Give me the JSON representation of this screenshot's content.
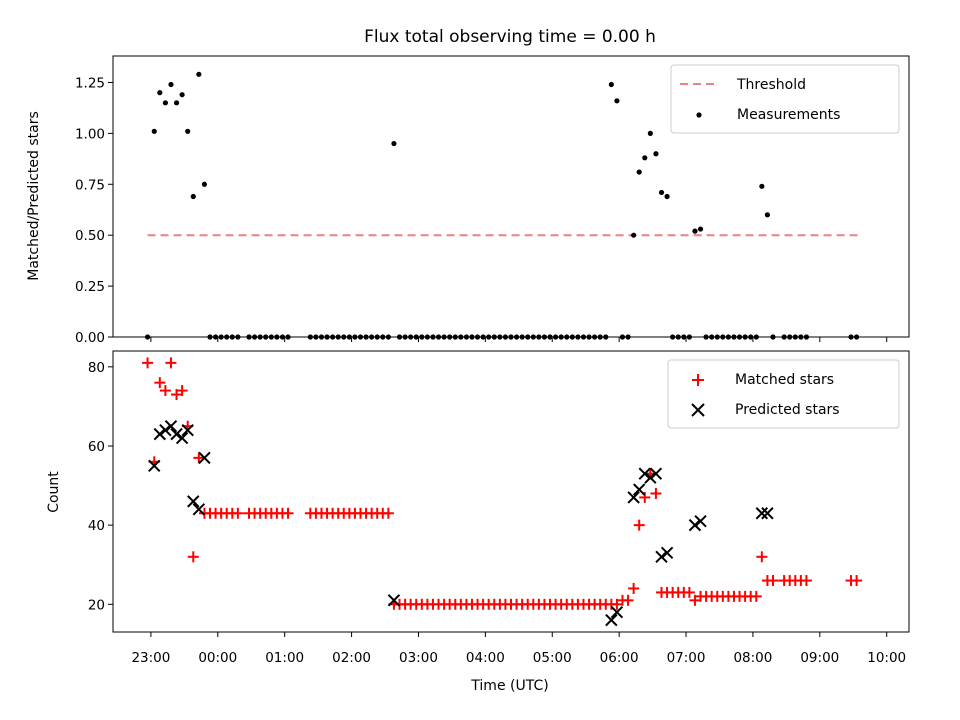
{
  "chart_data": [
    {
      "type": "scatter",
      "title": "Flux total observing time = 0.00 h",
      "xlabel": "",
      "ylabel": "Matched/Predicted stars",
      "xlim": [
        "22:26",
        "10:20"
      ],
      "ylim": [
        0,
        1.38
      ],
      "yticks": [
        "0.00",
        "0.25",
        "0.50",
        "0.75",
        "1.00",
        "1.25"
      ],
      "xticks": [
        "23:00",
        "00:00",
        "01:00",
        "02:00",
        "03:00",
        "04:00",
        "05:00",
        "06:00",
        "07:00",
        "08:00",
        "09:00",
        "10:00"
      ],
      "legend_position": "upper-right",
      "threshold": {
        "name": "Threshold",
        "value": 0.5,
        "x_start": "22:57",
        "x_end": "09:35",
        "color": "#f08080",
        "style": "dashed"
      },
      "series": [
        {
          "name": "Measurements",
          "color": "#000000",
          "marker": "dot",
          "points": [
            [
              "22:57",
              0.0
            ],
            [
              "23:03",
              1.01
            ],
            [
              "23:08",
              1.2
            ],
            [
              "23:13",
              1.15
            ],
            [
              "23:18",
              1.24
            ],
            [
              "23:23",
              1.15
            ],
            [
              "23:28",
              1.19
            ],
            [
              "23:33",
              1.01
            ],
            [
              "23:38",
              0.69
            ],
            [
              "23:43",
              1.29
            ],
            [
              "23:48",
              0.75
            ],
            [
              "23:53",
              0.0
            ],
            [
              "23:58",
              0.0
            ],
            [
              "00:03",
              0.0
            ],
            [
              "00:08",
              0.0
            ],
            [
              "00:13",
              0.0
            ],
            [
              "00:18",
              0.0
            ],
            [
              "00:28",
              0.0
            ],
            [
              "00:33",
              0.0
            ],
            [
              "00:38",
              0.0
            ],
            [
              "00:43",
              0.0
            ],
            [
              "00:48",
              0.0
            ],
            [
              "00:53",
              0.0
            ],
            [
              "00:58",
              0.0
            ],
            [
              "01:03",
              0.0
            ],
            [
              "01:23",
              0.0
            ],
            [
              "01:28",
              0.0
            ],
            [
              "01:33",
              0.0
            ],
            [
              "01:38",
              0.0
            ],
            [
              "01:43",
              0.0
            ],
            [
              "01:48",
              0.0
            ],
            [
              "01:53",
              0.0
            ],
            [
              "01:58",
              0.0
            ],
            [
              "02:03",
              0.0
            ],
            [
              "02:08",
              0.0
            ],
            [
              "02:13",
              0.0
            ],
            [
              "02:18",
              0.0
            ],
            [
              "02:23",
              0.0
            ],
            [
              "02:28",
              0.0
            ],
            [
              "02:33",
              0.0
            ],
            [
              "02:38",
              0.95
            ],
            [
              "02:43",
              0.0
            ],
            [
              "02:48",
              0.0
            ],
            [
              "02:53",
              0.0
            ],
            [
              "02:58",
              0.0
            ],
            [
              "03:03",
              0.0
            ],
            [
              "03:08",
              0.0
            ],
            [
              "03:13",
              0.0
            ],
            [
              "03:18",
              0.0
            ],
            [
              "03:23",
              0.0
            ],
            [
              "03:28",
              0.0
            ],
            [
              "03:33",
              0.0
            ],
            [
              "03:38",
              0.0
            ],
            [
              "03:43",
              0.0
            ],
            [
              "03:48",
              0.0
            ],
            [
              "03:53",
              0.0
            ],
            [
              "03:58",
              0.0
            ],
            [
              "04:03",
              0.0
            ],
            [
              "04:08",
              0.0
            ],
            [
              "04:13",
              0.0
            ],
            [
              "04:18",
              0.0
            ],
            [
              "04:23",
              0.0
            ],
            [
              "04:28",
              0.0
            ],
            [
              "04:33",
              0.0
            ],
            [
              "04:38",
              0.0
            ],
            [
              "04:43",
              0.0
            ],
            [
              "04:48",
              0.0
            ],
            [
              "04:53",
              0.0
            ],
            [
              "04:58",
              0.0
            ],
            [
              "05:03",
              0.0
            ],
            [
              "05:08",
              0.0
            ],
            [
              "05:13",
              0.0
            ],
            [
              "05:18",
              0.0
            ],
            [
              "05:23",
              0.0
            ],
            [
              "05:28",
              0.0
            ],
            [
              "05:33",
              0.0
            ],
            [
              "05:38",
              0.0
            ],
            [
              "05:43",
              0.0
            ],
            [
              "05:48",
              0.0
            ],
            [
              "05:53",
              1.24
            ],
            [
              "05:58",
              1.16
            ],
            [
              "06:03",
              0.0
            ],
            [
              "06:08",
              0.0
            ],
            [
              "06:13",
              0.5
            ],
            [
              "06:18",
              0.81
            ],
            [
              "06:23",
              0.88
            ],
            [
              "06:28",
              1.0
            ],
            [
              "06:33",
              0.9
            ],
            [
              "06:38",
              0.71
            ],
            [
              "06:43",
              0.69
            ],
            [
              "06:48",
              0.0
            ],
            [
              "06:53",
              0.0
            ],
            [
              "06:58",
              0.0
            ],
            [
              "07:03",
              0.0
            ],
            [
              "07:08",
              0.52
            ],
            [
              "07:13",
              0.53
            ],
            [
              "07:18",
              0.0
            ],
            [
              "07:23",
              0.0
            ],
            [
              "07:28",
              0.0
            ],
            [
              "07:33",
              0.0
            ],
            [
              "07:38",
              0.0
            ],
            [
              "07:43",
              0.0
            ],
            [
              "07:48",
              0.0
            ],
            [
              "07:53",
              0.0
            ],
            [
              "07:58",
              0.0
            ],
            [
              "08:03",
              0.0
            ],
            [
              "08:08",
              0.74
            ],
            [
              "08:13",
              0.6
            ],
            [
              "08:18",
              0.0
            ],
            [
              "08:28",
              0.0
            ],
            [
              "08:33",
              0.0
            ],
            [
              "08:38",
              0.0
            ],
            [
              "08:43",
              0.0
            ],
            [
              "08:48",
              0.0
            ],
            [
              "09:28",
              0.0
            ],
            [
              "09:33",
              0.0
            ]
          ]
        }
      ]
    },
    {
      "type": "scatter",
      "title": "",
      "xlabel": "Time (UTC)",
      "ylabel": "Count",
      "xlim": [
        "22:26",
        "10:20"
      ],
      "ylim": [
        13,
        84
      ],
      "yticks": [
        "20",
        "40",
        "60",
        "80"
      ],
      "xticks": [
        "23:00",
        "00:00",
        "01:00",
        "02:00",
        "03:00",
        "04:00",
        "05:00",
        "06:00",
        "07:00",
        "08:00",
        "09:00",
        "10:00"
      ],
      "legend_position": "upper-right",
      "series": [
        {
          "name": "Matched stars",
          "color": "#ff0000",
          "marker": "plus",
          "points": [
            [
              "22:57",
              81
            ],
            [
              "23:03",
              56
            ],
            [
              "23:08",
              76
            ],
            [
              "23:13",
              74
            ],
            [
              "23:18",
              81
            ],
            [
              "23:23",
              73
            ],
            [
              "23:28",
              74
            ],
            [
              "23:33",
              65
            ],
            [
              "23:38",
              32
            ],
            [
              "23:43",
              57
            ],
            [
              "23:48",
              43
            ],
            [
              "23:53",
              43
            ],
            [
              "23:58",
              43
            ],
            [
              "00:03",
              43
            ],
            [
              "00:08",
              43
            ],
            [
              "00:13",
              43
            ],
            [
              "00:18",
              43
            ],
            [
              "00:28",
              43
            ],
            [
              "00:33",
              43
            ],
            [
              "00:38",
              43
            ],
            [
              "00:43",
              43
            ],
            [
              "00:48",
              43
            ],
            [
              "00:53",
              43
            ],
            [
              "00:58",
              43
            ],
            [
              "01:03",
              43
            ],
            [
              "01:23",
              43
            ],
            [
              "01:28",
              43
            ],
            [
              "01:33",
              43
            ],
            [
              "01:38",
              43
            ],
            [
              "01:43",
              43
            ],
            [
              "01:48",
              43
            ],
            [
              "01:53",
              43
            ],
            [
              "01:58",
              43
            ],
            [
              "02:03",
              43
            ],
            [
              "02:08",
              43
            ],
            [
              "02:13",
              43
            ],
            [
              "02:18",
              43
            ],
            [
              "02:23",
              43
            ],
            [
              "02:28",
              43
            ],
            [
              "02:33",
              43
            ],
            [
              "02:38",
              20
            ],
            [
              "02:43",
              20
            ],
            [
              "02:48",
              20
            ],
            [
              "02:53",
              20
            ],
            [
              "02:58",
              20
            ],
            [
              "03:03",
              20
            ],
            [
              "03:08",
              20
            ],
            [
              "03:13",
              20
            ],
            [
              "03:18",
              20
            ],
            [
              "03:23",
              20
            ],
            [
              "03:28",
              20
            ],
            [
              "03:33",
              20
            ],
            [
              "03:38",
              20
            ],
            [
              "03:43",
              20
            ],
            [
              "03:48",
              20
            ],
            [
              "03:53",
              20
            ],
            [
              "03:58",
              20
            ],
            [
              "04:03",
              20
            ],
            [
              "04:08",
              20
            ],
            [
              "04:13",
              20
            ],
            [
              "04:18",
              20
            ],
            [
              "04:23",
              20
            ],
            [
              "04:28",
              20
            ],
            [
              "04:33",
              20
            ],
            [
              "04:38",
              20
            ],
            [
              "04:43",
              20
            ],
            [
              "04:48",
              20
            ],
            [
              "04:53",
              20
            ],
            [
              "04:58",
              20
            ],
            [
              "05:03",
              20
            ],
            [
              "05:08",
              20
            ],
            [
              "05:13",
              20
            ],
            [
              "05:18",
              20
            ],
            [
              "05:23",
              20
            ],
            [
              "05:28",
              20
            ],
            [
              "05:33",
              20
            ],
            [
              "05:38",
              20
            ],
            [
              "05:43",
              20
            ],
            [
              "05:48",
              20
            ],
            [
              "05:53",
              20
            ],
            [
              "05:58",
              20
            ],
            [
              "06:03",
              21
            ],
            [
              "06:08",
              21
            ],
            [
              "06:13",
              24
            ],
            [
              "06:18",
              40
            ],
            [
              "06:23",
              47
            ],
            [
              "06:28",
              53
            ],
            [
              "06:33",
              48
            ],
            [
              "06:38",
              23
            ],
            [
              "06:43",
              23
            ],
            [
              "06:48",
              23
            ],
            [
              "06:53",
              23
            ],
            [
              "06:58",
              23
            ],
            [
              "07:03",
              23
            ],
            [
              "07:08",
              21
            ],
            [
              "07:13",
              22
            ],
            [
              "07:18",
              22
            ],
            [
              "07:23",
              22
            ],
            [
              "07:28",
              22
            ],
            [
              "07:33",
              22
            ],
            [
              "07:38",
              22
            ],
            [
              "07:43",
              22
            ],
            [
              "07:48",
              22
            ],
            [
              "07:53",
              22
            ],
            [
              "07:58",
              22
            ],
            [
              "08:03",
              22
            ],
            [
              "08:08",
              32
            ],
            [
              "08:13",
              26
            ],
            [
              "08:18",
              26
            ],
            [
              "08:28",
              26
            ],
            [
              "08:33",
              26
            ],
            [
              "08:38",
              26
            ],
            [
              "08:43",
              26
            ],
            [
              "08:48",
              26
            ],
            [
              "09:28",
              26
            ],
            [
              "09:33",
              26
            ]
          ]
        },
        {
          "name": "Predicted stars",
          "color": "#000000",
          "marker": "x",
          "points": [
            [
              "23:03",
              55
            ],
            [
              "23:08",
              63
            ],
            [
              "23:13",
              64
            ],
            [
              "23:18",
              65
            ],
            [
              "23:23",
              63
            ],
            [
              "23:28",
              62
            ],
            [
              "23:33",
              64
            ],
            [
              "23:38",
              46
            ],
            [
              "23:43",
              44
            ],
            [
              "23:48",
              57
            ],
            [
              "02:38",
              21
            ],
            [
              "05:53",
              16
            ],
            [
              "05:58",
              18
            ],
            [
              "06:13",
              47
            ],
            [
              "06:18",
              49
            ],
            [
              "06:23",
              53
            ],
            [
              "06:28",
              52
            ],
            [
              "06:33",
              53
            ],
            [
              "06:38",
              32
            ],
            [
              "06:43",
              33
            ],
            [
              "07:08",
              40
            ],
            [
              "07:13",
              41
            ],
            [
              "08:08",
              43
            ],
            [
              "08:13",
              43
            ]
          ]
        }
      ]
    }
  ]
}
